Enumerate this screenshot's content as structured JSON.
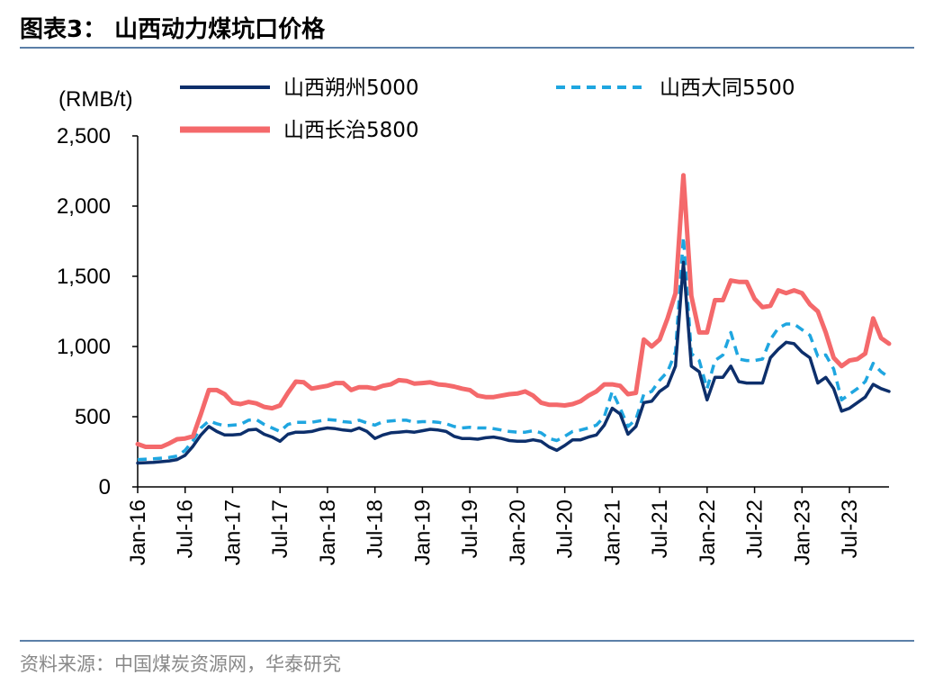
{
  "figure": {
    "title": "图表3： 山西动力煤坑口价格",
    "source": "资料来源：中国煤炭资源网，华泰研究"
  },
  "chart_data": {
    "type": "line",
    "ylabel": "(RMB/t)",
    "ylim": [
      0,
      2500
    ],
    "yticks": [
      0,
      500,
      1000,
      1500,
      2000,
      2500
    ],
    "ytick_labels": [
      "0",
      "500",
      "1,000",
      "1,500",
      "2,000",
      "2,500"
    ],
    "xlim": [
      "2016-01",
      "2023-12"
    ],
    "xticks": [
      "2016-01",
      "2016-07",
      "2017-01",
      "2017-07",
      "2018-01",
      "2018-07",
      "2019-01",
      "2019-07",
      "2020-01",
      "2020-07",
      "2021-01",
      "2021-07",
      "2022-01",
      "2022-07",
      "2023-01",
      "2023-07"
    ],
    "xtick_labels": [
      "Jan-16",
      "Jul-16",
      "Jan-17",
      "Jul-17",
      "Jan-18",
      "Jul-18",
      "Jan-19",
      "Jul-19",
      "Jan-20",
      "Jul-20",
      "Jan-21",
      "Jul-21",
      "Jan-22",
      "Jul-22",
      "Jan-23",
      "Jul-23"
    ],
    "grid": false,
    "legend_position": "top",
    "series": [
      {
        "name": "山西朔州5000",
        "color": "#0d2f6b",
        "style": "solid",
        "points": [
          [
            "2016-01",
            170
          ],
          [
            "2016-03",
            175
          ],
          [
            "2016-05",
            185
          ],
          [
            "2016-06",
            195
          ],
          [
            "2016-07",
            225
          ],
          [
            "2016-08",
            290
          ],
          [
            "2016-09",
            370
          ],
          [
            "2016-10",
            430
          ],
          [
            "2016-11",
            395
          ],
          [
            "2016-12",
            370
          ],
          [
            "2017-01",
            370
          ],
          [
            "2017-02",
            375
          ],
          [
            "2017-03",
            405
          ],
          [
            "2017-04",
            410
          ],
          [
            "2017-05",
            375
          ],
          [
            "2017-06",
            355
          ],
          [
            "2017-07",
            325
          ],
          [
            "2017-08",
            375
          ],
          [
            "2017-09",
            390
          ],
          [
            "2017-10",
            390
          ],
          [
            "2017-11",
            395
          ],
          [
            "2017-12",
            410
          ],
          [
            "2018-01",
            420
          ],
          [
            "2018-02",
            415
          ],
          [
            "2018-03",
            405
          ],
          [
            "2018-04",
            400
          ],
          [
            "2018-05",
            420
          ],
          [
            "2018-06",
            395
          ],
          [
            "2018-07",
            345
          ],
          [
            "2018-08",
            370
          ],
          [
            "2018-09",
            385
          ],
          [
            "2018-10",
            390
          ],
          [
            "2018-11",
            395
          ],
          [
            "2018-12",
            390
          ],
          [
            "2019-01",
            400
          ],
          [
            "2019-02",
            410
          ],
          [
            "2019-03",
            405
          ],
          [
            "2019-04",
            395
          ],
          [
            "2019-05",
            360
          ],
          [
            "2019-06",
            345
          ],
          [
            "2019-07",
            345
          ],
          [
            "2019-08",
            340
          ],
          [
            "2019-09",
            350
          ],
          [
            "2019-10",
            355
          ],
          [
            "2019-11",
            345
          ],
          [
            "2019-12",
            330
          ],
          [
            "2020-01",
            325
          ],
          [
            "2020-02",
            325
          ],
          [
            "2020-03",
            335
          ],
          [
            "2020-04",
            325
          ],
          [
            "2020-05",
            285
          ],
          [
            "2020-06",
            260
          ],
          [
            "2020-07",
            295
          ],
          [
            "2020-08",
            335
          ],
          [
            "2020-09",
            335
          ],
          [
            "2020-10",
            355
          ],
          [
            "2020-11",
            370
          ],
          [
            "2020-12",
            440
          ],
          [
            "2021-01",
            560
          ],
          [
            "2021-02",
            520
          ],
          [
            "2021-03",
            375
          ],
          [
            "2021-04",
            430
          ],
          [
            "2021-05",
            600
          ],
          [
            "2021-06",
            610
          ],
          [
            "2021-07",
            680
          ],
          [
            "2021-08",
            720
          ],
          [
            "2021-09",
            860
          ],
          [
            "2021-10",
            1600
          ],
          [
            "2021-11",
            860
          ],
          [
            "2021-12",
            820
          ],
          [
            "2022-01",
            620
          ],
          [
            "2022-02",
            780
          ],
          [
            "2022-03",
            780
          ],
          [
            "2022-04",
            860
          ],
          [
            "2022-05",
            750
          ],
          [
            "2022-06",
            740
          ],
          [
            "2022-07",
            740
          ],
          [
            "2022-08",
            740
          ],
          [
            "2022-09",
            920
          ],
          [
            "2022-10",
            980
          ],
          [
            "2022-11",
            1030
          ],
          [
            "2022-12",
            1020
          ],
          [
            "2023-01",
            960
          ],
          [
            "2023-02",
            920
          ],
          [
            "2023-03",
            740
          ],
          [
            "2023-04",
            780
          ],
          [
            "2023-05",
            700
          ],
          [
            "2023-06",
            540
          ],
          [
            "2023-07",
            560
          ],
          [
            "2023-08",
            600
          ],
          [
            "2023-09",
            640
          ],
          [
            "2023-10",
            730
          ],
          [
            "2023-11",
            700
          ],
          [
            "2023-12",
            680
          ]
        ]
      },
      {
        "name": "山西大同5500",
        "color": "#1fa6e0",
        "style": "dashed",
        "points": [
          [
            "2016-01",
            195
          ],
          [
            "2016-03",
            200
          ],
          [
            "2016-05",
            210
          ],
          [
            "2016-06",
            220
          ],
          [
            "2016-07",
            260
          ],
          [
            "2016-08",
            330
          ],
          [
            "2016-09",
            420
          ],
          [
            "2016-10",
            470
          ],
          [
            "2016-11",
            450
          ],
          [
            "2016-12",
            435
          ],
          [
            "2017-01",
            440
          ],
          [
            "2017-02",
            445
          ],
          [
            "2017-03",
            475
          ],
          [
            "2017-04",
            480
          ],
          [
            "2017-05",
            445
          ],
          [
            "2017-06",
            420
          ],
          [
            "2017-07",
            395
          ],
          [
            "2017-08",
            445
          ],
          [
            "2017-09",
            460
          ],
          [
            "2017-10",
            460
          ],
          [
            "2017-11",
            460
          ],
          [
            "2017-12",
            470
          ],
          [
            "2018-01",
            480
          ],
          [
            "2018-02",
            475
          ],
          [
            "2018-03",
            465
          ],
          [
            "2018-04",
            460
          ],
          [
            "2018-05",
            475
          ],
          [
            "2018-06",
            455
          ],
          [
            "2018-07",
            440
          ],
          [
            "2018-08",
            465
          ],
          [
            "2018-09",
            470
          ],
          [
            "2018-10",
            475
          ],
          [
            "2018-11",
            475
          ],
          [
            "2018-12",
            460
          ],
          [
            "2019-01",
            465
          ],
          [
            "2019-02",
            465
          ],
          [
            "2019-03",
            460
          ],
          [
            "2019-04",
            450
          ],
          [
            "2019-05",
            430
          ],
          [
            "2019-06",
            420
          ],
          [
            "2019-07",
            425
          ],
          [
            "2019-08",
            420
          ],
          [
            "2019-09",
            420
          ],
          [
            "2019-10",
            415
          ],
          [
            "2019-11",
            405
          ],
          [
            "2019-12",
            395
          ],
          [
            "2020-01",
            390
          ],
          [
            "2020-02",
            390
          ],
          [
            "2020-03",
            400
          ],
          [
            "2020-04",
            385
          ],
          [
            "2020-05",
            345
          ],
          [
            "2020-06",
            330
          ],
          [
            "2020-07",
            360
          ],
          [
            "2020-08",
            395
          ],
          [
            "2020-09",
            405
          ],
          [
            "2020-10",
            420
          ],
          [
            "2020-11",
            440
          ],
          [
            "2020-12",
            500
          ],
          [
            "2021-01",
            680
          ],
          [
            "2021-02",
            560
          ],
          [
            "2021-03",
            430
          ],
          [
            "2021-04",
            480
          ],
          [
            "2021-05",
            660
          ],
          [
            "2021-06",
            680
          ],
          [
            "2021-07",
            760
          ],
          [
            "2021-08",
            820
          ],
          [
            "2021-09",
            960
          ],
          [
            "2021-10",
            1780
          ],
          [
            "2021-11",
            950
          ],
          [
            "2021-12",
            900
          ],
          [
            "2022-01",
            700
          ],
          [
            "2022-02",
            900
          ],
          [
            "2022-03",
            940
          ],
          [
            "2022-04",
            1100
          ],
          [
            "2022-05",
            910
          ],
          [
            "2022-06",
            900
          ],
          [
            "2022-07",
            900
          ],
          [
            "2022-08",
            910
          ],
          [
            "2022-09",
            1050
          ],
          [
            "2022-10",
            1130
          ],
          [
            "2022-11",
            1160
          ],
          [
            "2022-12",
            1160
          ],
          [
            "2023-01",
            1120
          ],
          [
            "2023-02",
            1080
          ],
          [
            "2023-03",
            930
          ],
          [
            "2023-04",
            940
          ],
          [
            "2023-05",
            840
          ],
          [
            "2023-06",
            620
          ],
          [
            "2023-07",
            660
          ],
          [
            "2023-08",
            700
          ],
          [
            "2023-09",
            750
          ],
          [
            "2023-10",
            880
          ],
          [
            "2023-11",
            820
          ],
          [
            "2023-12",
            780
          ]
        ]
      },
      {
        "name": "山西长治5800",
        "color": "#f4696b",
        "style": "solid",
        "points": [
          [
            "2016-01",
            305
          ],
          [
            "2016-02",
            285
          ],
          [
            "2016-04",
            285
          ],
          [
            "2016-05",
            310
          ],
          [
            "2016-06",
            340
          ],
          [
            "2016-07",
            345
          ],
          [
            "2016-08",
            360
          ],
          [
            "2016-09",
            520
          ],
          [
            "2016-10",
            690
          ],
          [
            "2016-11",
            690
          ],
          [
            "2016-12",
            660
          ],
          [
            "2017-01",
            600
          ],
          [
            "2017-02",
            590
          ],
          [
            "2017-03",
            605
          ],
          [
            "2017-04",
            595
          ],
          [
            "2017-05",
            570
          ],
          [
            "2017-06",
            560
          ],
          [
            "2017-07",
            580
          ],
          [
            "2017-08",
            670
          ],
          [
            "2017-09",
            750
          ],
          [
            "2017-10",
            745
          ],
          [
            "2017-11",
            700
          ],
          [
            "2017-12",
            710
          ],
          [
            "2018-01",
            720
          ],
          [
            "2018-02",
            740
          ],
          [
            "2018-03",
            740
          ],
          [
            "2018-04",
            690
          ],
          [
            "2018-05",
            710
          ],
          [
            "2018-06",
            710
          ],
          [
            "2018-07",
            700
          ],
          [
            "2018-08",
            720
          ],
          [
            "2018-09",
            730
          ],
          [
            "2018-10",
            760
          ],
          [
            "2018-11",
            755
          ],
          [
            "2018-12",
            735
          ],
          [
            "2019-01",
            740
          ],
          [
            "2019-02",
            745
          ],
          [
            "2019-03",
            730
          ],
          [
            "2019-04",
            725
          ],
          [
            "2019-05",
            715
          ],
          [
            "2019-06",
            700
          ],
          [
            "2019-07",
            690
          ],
          [
            "2019-08",
            650
          ],
          [
            "2019-09",
            640
          ],
          [
            "2019-10",
            640
          ],
          [
            "2019-11",
            650
          ],
          [
            "2019-12",
            660
          ],
          [
            "2020-01",
            665
          ],
          [
            "2020-02",
            680
          ],
          [
            "2020-03",
            650
          ],
          [
            "2020-04",
            600
          ],
          [
            "2020-05",
            585
          ],
          [
            "2020-06",
            585
          ],
          [
            "2020-07",
            580
          ],
          [
            "2020-08",
            590
          ],
          [
            "2020-09",
            610
          ],
          [
            "2020-10",
            650
          ],
          [
            "2020-11",
            680
          ],
          [
            "2020-12",
            730
          ],
          [
            "2021-01",
            730
          ],
          [
            "2021-02",
            720
          ],
          [
            "2021-03",
            660
          ],
          [
            "2021-04",
            670
          ],
          [
            "2021-05",
            1050
          ],
          [
            "2021-06",
            1000
          ],
          [
            "2021-07",
            1050
          ],
          [
            "2021-08",
            1200
          ],
          [
            "2021-09",
            1380
          ],
          [
            "2021-10",
            2220
          ],
          [
            "2021-11",
            1360
          ],
          [
            "2021-12",
            1100
          ],
          [
            "2022-01",
            1100
          ],
          [
            "2022-02",
            1330
          ],
          [
            "2022-03",
            1330
          ],
          [
            "2022-04",
            1470
          ],
          [
            "2022-05",
            1460
          ],
          [
            "2022-06",
            1460
          ],
          [
            "2022-07",
            1340
          ],
          [
            "2022-08",
            1280
          ],
          [
            "2022-09",
            1290
          ],
          [
            "2022-10",
            1400
          ],
          [
            "2022-11",
            1380
          ],
          [
            "2022-12",
            1400
          ],
          [
            "2023-01",
            1380
          ],
          [
            "2023-02",
            1300
          ],
          [
            "2023-03",
            1250
          ],
          [
            "2023-04",
            1100
          ],
          [
            "2023-05",
            920
          ],
          [
            "2023-06",
            860
          ],
          [
            "2023-07",
            900
          ],
          [
            "2023-08",
            910
          ],
          [
            "2023-09",
            950
          ],
          [
            "2023-10",
            1200
          ],
          [
            "2023-11",
            1060
          ],
          [
            "2023-12",
            1020
          ]
        ]
      }
    ]
  }
}
